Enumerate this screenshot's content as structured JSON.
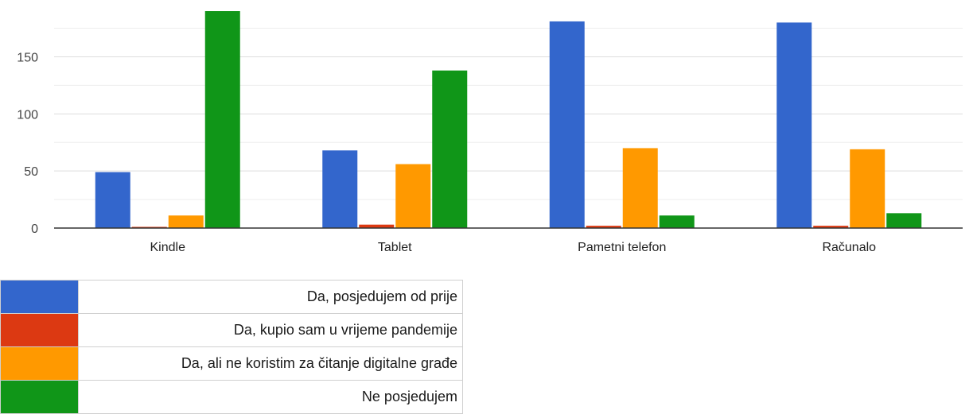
{
  "chart_data": {
    "type": "bar",
    "categories": [
      "Kindle",
      "Tablet",
      "Pametni telefon",
      "Računalo"
    ],
    "ylim": [
      0,
      190
    ],
    "yticks": [
      0,
      50,
      100,
      150
    ],
    "grid": true,
    "legend_position": "bottom",
    "series": [
      {
        "name": "Da, posjedujem od prije",
        "color": "#3366cc",
        "values": [
          49,
          68,
          181,
          180
        ]
      },
      {
        "name": "Da, kupio sam u vrijeme pandemije",
        "color": "#dc3912",
        "values": [
          1,
          3,
          2,
          2
        ]
      },
      {
        "name": "Da, ali ne koristim za čitanje digitalne građe",
        "color": "#ff9900",
        "values": [
          11,
          56,
          70,
          69
        ]
      },
      {
        "name": "Ne posjedujem",
        "color": "#109618",
        "values": [
          190,
          138,
          11,
          13
        ]
      }
    ]
  }
}
